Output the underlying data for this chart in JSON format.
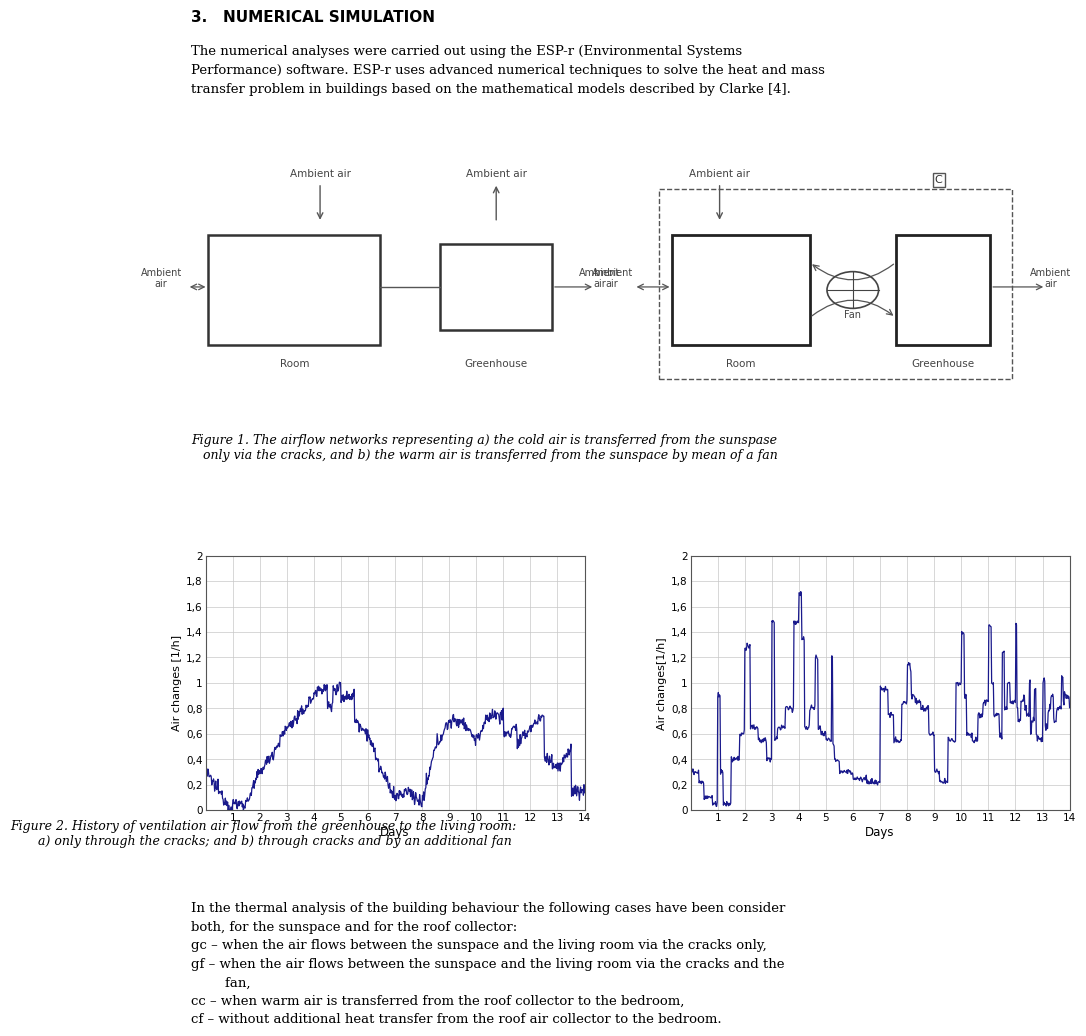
{
  "ylabel_left": "Air changes [1/h]",
  "ylabel_right": "Air changes[1/h]",
  "xlabel": "Days",
  "ylim": [
    0,
    2
  ],
  "yticks": [
    0,
    0.2,
    0.4,
    0.6,
    0.8,
    1.0,
    1.2,
    1.4,
    1.6,
    1.8,
    2.0
  ],
  "ytick_labels": [
    "0",
    "0,2",
    "0,4",
    "0,6",
    "0,8",
    "1",
    "1,2",
    "1,4",
    "1,6",
    "1,8",
    "2"
  ],
  "xticks": [
    1,
    2,
    3,
    4,
    5,
    6,
    7,
    8,
    9,
    10,
    11,
    12,
    13,
    14
  ],
  "line_color": "#1a1a8c",
  "grid_color": "#c8c8c8",
  "bg_color": "#ffffff",
  "fig_bg": "#ffffff",
  "section_title": "3.   NUMERICAL SIMULATION",
  "body_text": "The numerical analyses were carried out using the ESP-r (Environmental Systems\nPerformance) software. ESP-r uses advanced numerical techniques to solve the heat and mass\ntransfer problem in buildings based on the mathematical models described by Clarke [4].",
  "fig1_caption": "Figure 1. The airflow networks representing a) the cold air is transferred from the sunspase\n   only via the cracks, and b) the warm air is transferred from the sunspace by mean of a fan",
  "fig2_caption": "Figure 2. History of ventilation air flow from the greenhouse to the living room:\n      a) only through the cracks; and b) through cracks and by an additional fan",
  "lower_text_line1": "In the thermal analysis of the building behaviour the following cases have been consider",
  "lower_text_line2": "both, for the sunspace and for the roof collector:",
  "lower_text_line3": "gc – when the air flows between the sunspace and the living room via the cracks only,",
  "lower_text_line4": "gf – when the air flows between the sunspace and the living room via the cracks and the",
  "lower_text_line5": "        fan,",
  "lower_text_line6": "cc – when warm air is transferred from the roof collector to the bedroom,",
  "lower_text_line7": "cf – without additional heat transfer from the roof air collector to the bedroom."
}
